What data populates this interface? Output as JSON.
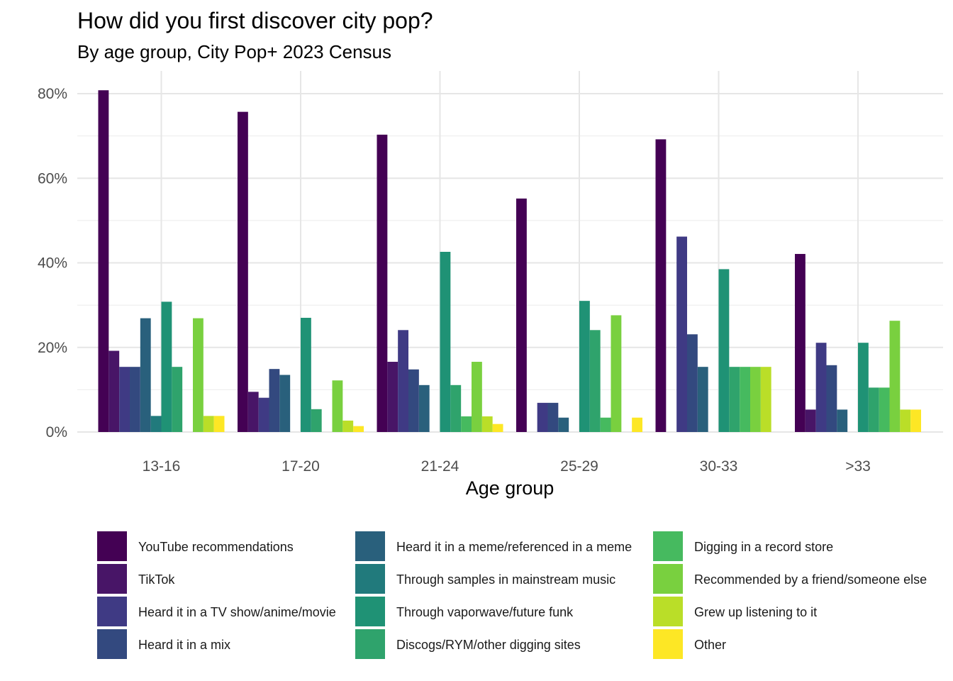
{
  "chart_data": {
    "type": "bar",
    "title": "How did you first discover city pop?",
    "subtitle": "By age group, City Pop+ 2023 Census",
    "xlabel": "Age group",
    "ylabel": "",
    "categories": [
      "13-16",
      "17-20",
      "21-24",
      "25-29",
      "30-33",
      ">33"
    ],
    "ylim": [
      0,
      80
    ],
    "yticks": [
      0,
      20,
      40,
      60,
      80
    ],
    "ytick_labels": [
      "0%",
      "20%",
      "40%",
      "60%",
      "80%"
    ],
    "grid": true,
    "legend_position": "bottom",
    "series": [
      {
        "name": "YouTube recommendations",
        "color": "#440154",
        "values": [
          80.8,
          75.7,
          70.3,
          55.2,
          69.2,
          42.1
        ]
      },
      {
        "name": "TikTok",
        "color": "#481567",
        "values": [
          19.2,
          9.5,
          16.6,
          0,
          0,
          5.3
        ]
      },
      {
        "name": "Heard it in a TV show/anime/movie",
        "color": "#3F3A84",
        "values": [
          15.4,
          8.1,
          24.1,
          6.9,
          46.2,
          21.1
        ]
      },
      {
        "name": "Heard it in a mix",
        "color": "#33497F",
        "values": [
          15.4,
          14.9,
          14.8,
          6.9,
          23.1,
          15.8
        ]
      },
      {
        "name": "Heard it in a meme/referenced in a meme",
        "color": "#29607C",
        "values": [
          26.9,
          13.5,
          11.1,
          3.4,
          15.4,
          5.3
        ]
      },
      {
        "name": "Through samples in mainstream music",
        "color": "#217A7C",
        "values": [
          3.8,
          0,
          0,
          0,
          0,
          0
        ]
      },
      {
        "name": "Through vaporwave/future funk",
        "color": "#1F9275",
        "values": [
          30.8,
          27.0,
          42.6,
          31.0,
          38.5,
          21.1
        ]
      },
      {
        "name": "Discogs/RYM/other digging sites",
        "color": "#2FA36C",
        "values": [
          15.4,
          5.4,
          11.1,
          24.1,
          15.4,
          10.5
        ]
      },
      {
        "name": "Digging in a record store",
        "color": "#46BA5F",
        "values": [
          0,
          0,
          3.7,
          3.4,
          15.4,
          10.5
        ]
      },
      {
        "name": "Recommended by a friend/someone else",
        "color": "#79D03F",
        "values": [
          26.9,
          12.2,
          16.6,
          27.6,
          15.4,
          26.3
        ]
      },
      {
        "name": "Grew up listening to it",
        "color": "#BADE28",
        "values": [
          3.8,
          2.7,
          3.7,
          0,
          15.4,
          5.3
        ]
      },
      {
        "name": "Other",
        "color": "#FDE725",
        "values": [
          3.8,
          1.4,
          1.9,
          3.4,
          0,
          5.3
        ]
      }
    ]
  }
}
